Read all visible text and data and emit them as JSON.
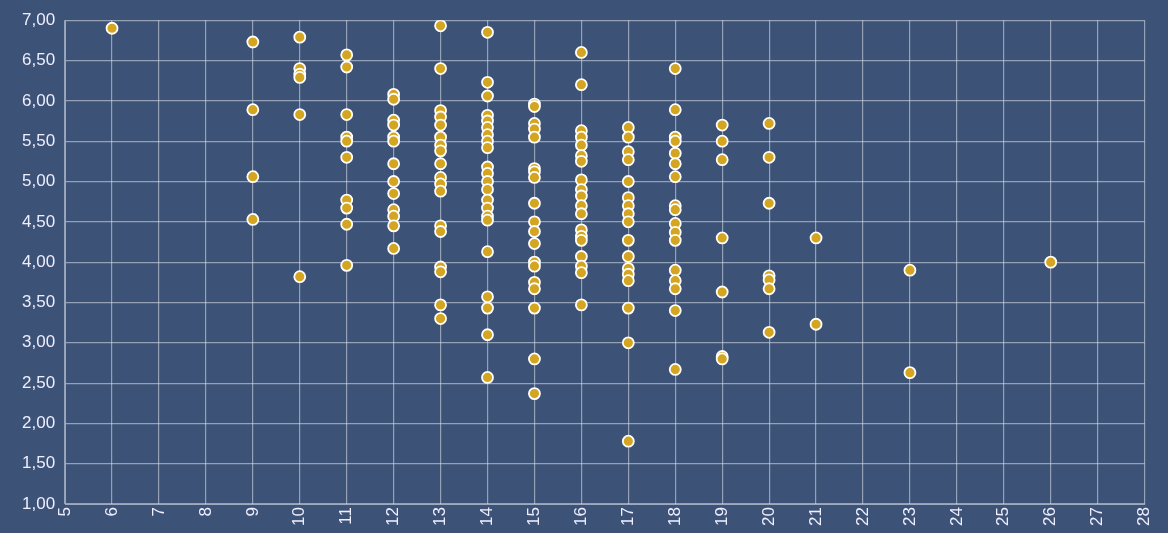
{
  "chart_data": {
    "type": "scatter",
    "marker": "circle",
    "grid": true,
    "xlim": [
      5,
      28
    ],
    "xticks": [
      5,
      6,
      7,
      8,
      9,
      10,
      11,
      12,
      13,
      14,
      15,
      16,
      17,
      18,
      19,
      20,
      21,
      22,
      23,
      24,
      25,
      26,
      27,
      28
    ],
    "ylim": [
      1,
      7
    ],
    "yticks": [
      {
        "value": 1,
        "label": "1,00"
      },
      {
        "value": 1.5,
        "label": "1,50"
      },
      {
        "value": 2,
        "label": "2,00"
      },
      {
        "value": 2.5,
        "label": "2,50"
      },
      {
        "value": 3,
        "label": "3,00"
      },
      {
        "value": 3.5,
        "label": "3,50"
      },
      {
        "value": 4,
        "label": "4,00"
      },
      {
        "value": 4.5,
        "label": "4,50"
      },
      {
        "value": 5,
        "label": "5,00"
      },
      {
        "value": 5.5,
        "label": "5,50"
      },
      {
        "value": 6,
        "label": "6,00"
      },
      {
        "value": 6.5,
        "label": "6,50"
      },
      {
        "value": 7,
        "label": "7,00"
      }
    ],
    "series": [
      {
        "color": "#d4a520",
        "x": [
          6,
          9,
          9,
          9,
          9,
          10,
          10,
          10,
          10,
          10,
          10,
          11,
          11,
          11,
          11,
          11,
          11,
          11,
          11,
          11,
          11,
          12,
          12,
          12,
          12,
          12,
          12,
          12,
          12,
          12,
          12,
          12,
          12,
          12,
          13,
          13,
          13,
          13,
          13,
          13,
          13,
          13,
          13,
          13,
          13,
          13,
          13,
          13,
          13,
          13,
          13,
          13,
          14,
          14,
          14,
          14,
          14,
          14,
          14,
          14,
          14,
          14,
          14,
          14,
          14,
          14,
          14,
          14,
          14,
          14,
          14,
          14,
          14,
          14,
          15,
          15,
          15,
          15,
          15,
          15,
          15,
          15,
          15,
          15,
          15,
          15,
          15,
          15,
          15,
          15,
          15,
          15,
          15,
          16,
          16,
          16,
          16,
          16,
          16,
          16,
          16,
          16,
          16,
          16,
          16,
          16,
          16,
          16,
          16,
          16,
          16,
          16,
          17,
          17,
          17,
          17,
          17,
          17,
          17,
          17,
          17,
          17,
          17,
          17,
          17,
          17,
          17,
          17,
          17,
          18,
          18,
          18,
          18,
          18,
          18,
          18,
          18,
          18,
          18,
          18,
          18,
          18,
          18,
          18,
          18,
          18,
          19,
          19,
          19,
          19,
          19,
          19,
          19,
          20,
          20,
          20,
          20,
          20,
          20,
          20,
          21,
          21,
          23,
          23,
          26
        ],
        "values": [
          6.9,
          6.73,
          5.89,
          5.06,
          4.53,
          6.79,
          6.4,
          6.33,
          6.29,
          5.83,
          3.82,
          6.57,
          6.42,
          5.83,
          5.55,
          5.5,
          5.3,
          4.77,
          4.67,
          4.47,
          3.96,
          6.08,
          6.02,
          5.76,
          5.7,
          5.55,
          5.5,
          5.22,
          5.0,
          4.85,
          4.65,
          4.57,
          4.45,
          4.17,
          6.93,
          6.4,
          5.88,
          5.8,
          5.7,
          5.55,
          5.45,
          5.38,
          5.22,
          5.05,
          4.97,
          4.88,
          4.45,
          4.38,
          3.94,
          3.88,
          3.47,
          3.3,
          6.85,
          6.23,
          6.06,
          5.82,
          5.75,
          5.67,
          5.58,
          5.5,
          5.42,
          5.18,
          5.1,
          5.0,
          4.9,
          4.77,
          4.67,
          4.57,
          4.52,
          4.13,
          3.57,
          3.43,
          3.1,
          2.57,
          5.96,
          5.93,
          5.72,
          5.65,
          5.55,
          5.16,
          5.12,
          5.05,
          4.73,
          4.5,
          4.38,
          4.23,
          4.0,
          3.95,
          3.75,
          3.67,
          3.43,
          2.8,
          2.37,
          6.6,
          6.2,
          5.63,
          5.55,
          5.45,
          5.32,
          5.25,
          5.02,
          4.9,
          4.82,
          4.7,
          4.6,
          4.4,
          4.32,
          4.27,
          4.07,
          3.95,
          3.87,
          3.47,
          5.67,
          5.55,
          5.37,
          5.27,
          5.0,
          4.8,
          4.7,
          4.6,
          4.5,
          4.27,
          4.07,
          3.92,
          3.85,
          3.77,
          3.43,
          3.0,
          1.78,
          6.4,
          5.89,
          5.55,
          5.5,
          5.35,
          5.22,
          5.06,
          4.7,
          4.65,
          4.48,
          4.37,
          4.27,
          3.9,
          3.77,
          3.67,
          3.4,
          2.67,
          5.7,
          5.5,
          5.27,
          4.3,
          3.63,
          2.83,
          2.8,
          5.72,
          5.3,
          4.73,
          3.83,
          3.78,
          3.67,
          3.13,
          4.3,
          3.23,
          3.9,
          2.63,
          4.0
        ]
      }
    ]
  }
}
